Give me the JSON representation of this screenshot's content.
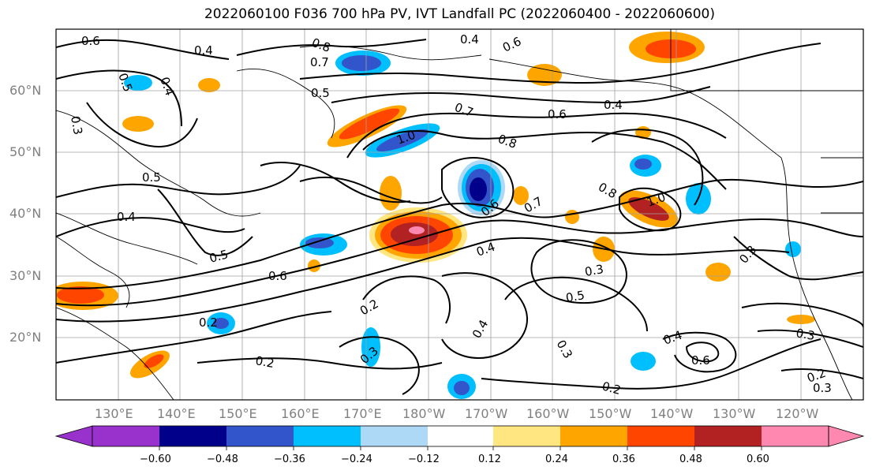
{
  "title": "2022060100 F036 700 hPa PV, IVT Landfall PC (2022060400 - 2022060600)",
  "lat_labels": [
    "60°N",
    "50°N",
    "40°N",
    "30°N",
    "20°N"
  ],
  "lon_labels": [
    "130°E",
    "140°E",
    "150°E",
    "160°E",
    "170°E",
    "180°W",
    "170°W",
    "160°W",
    "150°W",
    "140°W",
    "130°W",
    "120°W"
  ],
  "contour_labels": [
    "0.6",
    "0.4",
    "0.5",
    "0.4",
    "0.8",
    "0.7",
    "0.4",
    "0.6",
    "0.5",
    "0.7",
    "0.4",
    "0.6",
    "1.0",
    "0.8",
    "0.5",
    "0.4",
    "0.5",
    "0.6",
    "0.6",
    "0.7",
    "0.8",
    "1.0",
    "0.4",
    "0.3",
    "0.5",
    "0.3",
    "0.2",
    "0.2",
    "0.3",
    "0.4",
    "0.3",
    "0.4",
    "0.6",
    "0.3",
    "0.2",
    "0.2",
    "0.3",
    "0.2",
    "0.3"
  ],
  "colorbar": {
    "ticks": [
      "−0.60",
      "−0.48",
      "−0.36",
      "−0.24",
      "−0.12",
      "0.12",
      "0.24",
      "0.36",
      "0.48",
      "0.60"
    ],
    "colors": [
      "#9932CC",
      "#00008B",
      "#3355CC",
      "#00BFFF",
      "#ADD8F6",
      "#FFFFFF",
      "#FFE680",
      "#FFA500",
      "#FF4500",
      "#B22222",
      "#FF88B0"
    ]
  }
}
